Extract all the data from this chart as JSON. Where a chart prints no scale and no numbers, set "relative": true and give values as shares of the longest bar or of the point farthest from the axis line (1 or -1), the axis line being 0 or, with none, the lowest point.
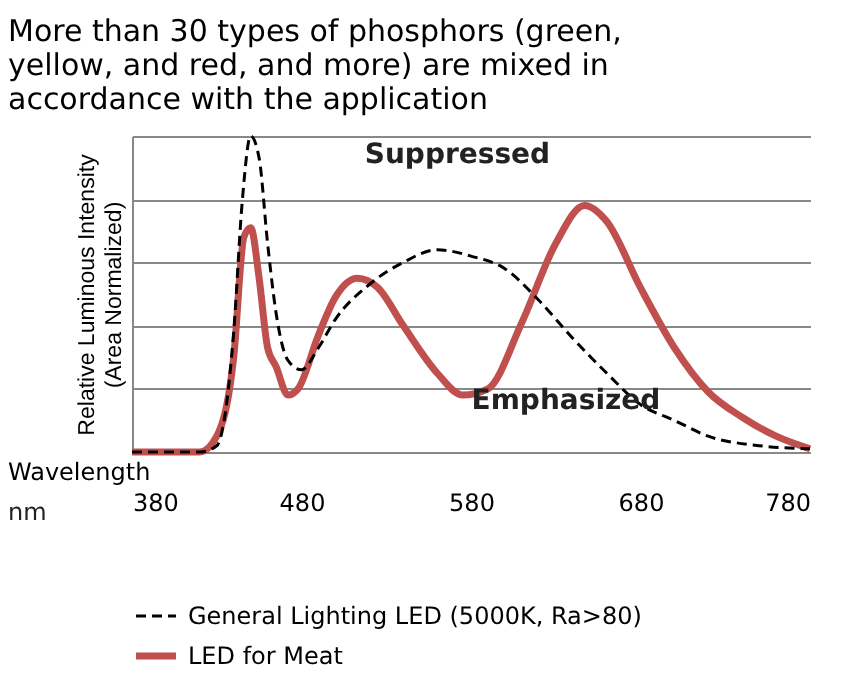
{
  "chart_data": {
    "type": "line",
    "relative": true,
    "title": "More than 30 types of phosphors (green, yellow, and red, and more) are mixed in accordance with the application",
    "ylabel": "Relative Luminous Intensity\n(Area Normalized)",
    "xlabel": "Wavelength",
    "xlim": [
      380,
      780
    ],
    "xticks": [
      380,
      480,
      580,
      680,
      780
    ],
    "annotations": [
      "Suppressed",
      "Emphasized",
      "nm"
    ],
    "grid": "y",
    "legend": "bottom",
    "series": [
      {
        "name": "General Lighting LED (5000K, Ra>80)",
        "color": "#000000",
        "line_style": "dashed",
        "x": [
          380,
          420,
          430,
          440,
          445,
          450,
          455,
          460,
          465,
          472,
          480,
          490,
          500,
          520,
          540,
          560,
          580,
          600,
          620,
          640,
          660,
          680,
          700,
          720,
          750,
          780
        ],
        "values": [
          0,
          0,
          0.02,
          0.38,
          0.79,
          1.0,
          0.93,
          0.66,
          0.44,
          0.29,
          0.26,
          0.33,
          0.42,
          0.53,
          0.6,
          0.64,
          0.62,
          0.58,
          0.48,
          0.36,
          0.25,
          0.15,
          0.1,
          0.05,
          0.02,
          0.01
        ]
      },
      {
        "name": "LED for Meat",
        "color": "#c0504d",
        "line_style": "solid",
        "x": [
          380,
          420,
          430,
          440,
          446,
          450,
          455,
          460,
          465,
          472,
          478,
          490,
          500,
          513,
          525,
          540,
          560,
          575,
          590,
          610,
          630,
          647,
          660,
          680,
          700,
          720,
          740,
          760,
          780
        ],
        "values": [
          0,
          0,
          0.05,
          0.3,
          0.68,
          0.71,
          0.55,
          0.33,
          0.27,
          0.18,
          0.2,
          0.37,
          0.49,
          0.55,
          0.52,
          0.4,
          0.25,
          0.18,
          0.2,
          0.41,
          0.66,
          0.78,
          0.73,
          0.52,
          0.33,
          0.19,
          0.11,
          0.05,
          0.01
        ]
      }
    ]
  }
}
